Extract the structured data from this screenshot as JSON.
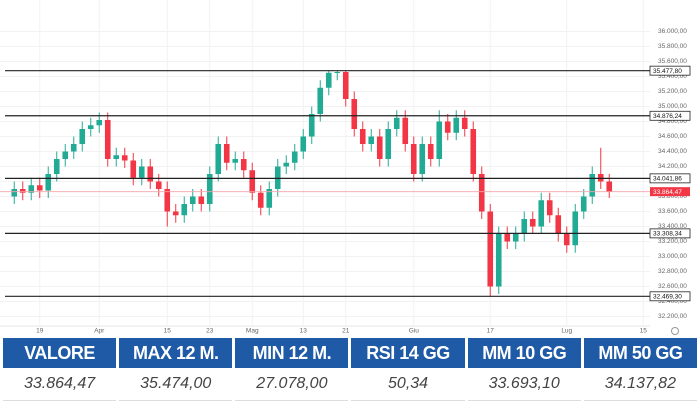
{
  "chart_data": {
    "type": "candlestick",
    "categories": [
      null,
      null,
      null,
      "19",
      null,
      null,
      null,
      null,
      null,
      null,
      "Apr",
      null,
      null,
      null,
      null,
      null,
      null,
      null,
      "15",
      null,
      null,
      null,
      null,
      "23",
      null,
      null,
      null,
      null,
      "Mag",
      null,
      null,
      null,
      null,
      null,
      "13",
      null,
      null,
      null,
      null,
      "21",
      null,
      null,
      null,
      null,
      null,
      null,
      null,
      "Giu",
      null,
      null,
      null,
      null,
      null,
      null,
      null,
      null,
      "17",
      null,
      null,
      null,
      null,
      null,
      null,
      null,
      null,
      "Lug",
      null,
      null,
      null,
      null,
      null,
      null,
      null,
      null,
      "15"
    ],
    "open": [
      33800,
      33900,
      33850,
      33950,
      33880,
      34100,
      34300,
      34400,
      34500,
      34700,
      34750,
      34820,
      34300,
      34350,
      34280,
      34050,
      34200,
      34000,
      33900,
      33600,
      33550,
      33700,
      33800,
      33700,
      34100,
      34500,
      34250,
      34300,
      34150,
      33850,
      33650,
      33900,
      34200,
      34250,
      34400,
      34600,
      34900,
      35250,
      35450,
      35460,
      35100,
      34700,
      34500,
      34600,
      34300,
      34700,
      34850,
      34500,
      34100,
      34500,
      34300,
      34800,
      34650,
      34850,
      34700,
      34100,
      33600,
      32600,
      33300,
      33200,
      33300,
      33500,
      33400,
      33750,
      33550,
      33300,
      33150,
      33600,
      33800,
      34100,
      34000,
      null,
      null,
      null,
      null
    ],
    "high": [
      34000,
      34000,
      34050,
      34050,
      34200,
      34400,
      34500,
      34600,
      34800,
      34850,
      34920,
      34920,
      34450,
      34450,
      34380,
      34300,
      34300,
      34100,
      34000,
      33700,
      33800,
      33900,
      33900,
      34200,
      34600,
      34600,
      34400,
      34400,
      34250,
      33950,
      34000,
      34300,
      34350,
      34500,
      34700,
      35000,
      35350,
      35474,
      35474,
      35474,
      35200,
      34800,
      34700,
      34700,
      34800,
      34950,
      34950,
      34600,
      34600,
      34600,
      34950,
      34900,
      34950,
      34950,
      34800,
      34200,
      33700,
      33400,
      33400,
      33400,
      33600,
      33600,
      33850,
      33850,
      33650,
      33400,
      33700,
      33900,
      34200,
      34450,
      34100,
      null,
      null,
      null,
      null
    ],
    "low": [
      33700,
      33750,
      33750,
      33780,
      33780,
      34000,
      34200,
      34300,
      34400,
      34600,
      34650,
      34200,
      34200,
      34180,
      33950,
      33950,
      33900,
      33800,
      33400,
      33450,
      33450,
      33600,
      33600,
      33600,
      34000,
      34150,
      34150,
      34050,
      33750,
      33550,
      33550,
      33800,
      34100,
      34150,
      34300,
      34500,
      34800,
      35150,
      35350,
      35000,
      34600,
      34400,
      34400,
      34200,
      34200,
      34600,
      34400,
      34000,
      34000,
      34200,
      34200,
      34550,
      34550,
      34600,
      34000,
      33500,
      32469.3,
      32500,
      33100,
      33100,
      33200,
      33300,
      33300,
      33450,
      33200,
      33050,
      33050,
      33500,
      33700,
      33900,
      33780,
      null,
      null,
      null,
      null
    ],
    "close": [
      33900,
      33850,
      33950,
      33880,
      34100,
      34300,
      34400,
      34500,
      34700,
      34750,
      34820,
      34300,
      34350,
      34280,
      34050,
      34200,
      34000,
      33900,
      33600,
      33550,
      33700,
      33800,
      33700,
      34100,
      34500,
      34250,
      34300,
      34150,
      33850,
      33650,
      33900,
      34200,
      34250,
      34400,
      34600,
      34900,
      35250,
      35450,
      35460,
      35100,
      34700,
      34500,
      34600,
      34300,
      34700,
      34850,
      34500,
      34100,
      34500,
      34300,
      34800,
      34650,
      34850,
      34700,
      34100,
      33600,
      32600,
      33300,
      33200,
      33300,
      33500,
      33400,
      33750,
      33550,
      33300,
      33150,
      33600,
      33800,
      34100,
      34000,
      33864.47,
      null,
      null,
      null,
      null
    ],
    "up_color": "#22ab94",
    "down_color": "#f23645",
    "ylim": [
      32100,
      36100
    ],
    "yticks": [
      {
        "value": 32200,
        "label": "32.200,00"
      },
      {
        "value": 32400,
        "label": "32.400,00"
      },
      {
        "value": 32600,
        "label": "32.600,00"
      },
      {
        "value": 32800,
        "label": "32.800,00"
      },
      {
        "value": 33000,
        "label": "33.000,00"
      },
      {
        "value": 33200,
        "label": "33.200,00"
      },
      {
        "value": 33400,
        "label": "33.400,00"
      },
      {
        "value": 33600,
        "label": "33.600,00"
      },
      {
        "value": 33800,
        "label": "33.800,00"
      },
      {
        "value": 34000,
        "label": "34.000,00"
      },
      {
        "value": 34200,
        "label": "34.200,00"
      },
      {
        "value": 34400,
        "label": "34.400,00"
      },
      {
        "value": 34600,
        "label": "34.600,00"
      },
      {
        "value": 34800,
        "label": "34.800,00"
      },
      {
        "value": 35000,
        "label": "35.000,00"
      },
      {
        "value": 35200,
        "label": "35.200,00"
      },
      {
        "value": 35400,
        "label": "35.400,00"
      },
      {
        "value": 35600,
        "label": "35.600,00"
      },
      {
        "value": 35800,
        "label": "35.800,00"
      },
      {
        "value": 36000,
        "label": "36.000,00"
      }
    ],
    "levels": [
      {
        "value": 35477.8,
        "label": "35.477,80"
      },
      {
        "value": 34876.24,
        "label": "34.876,24"
      },
      {
        "value": 34041.86,
        "label": "34.041,86"
      },
      {
        "value": 33308.34,
        "label": "33.308,34"
      },
      {
        "value": 32469.3,
        "label": "32.469,30"
      }
    ],
    "last_price": {
      "value": 33864.47,
      "label": "33.864,47"
    },
    "grid": true
  },
  "table": {
    "headers": [
      "VALORE",
      "MAX 12 M.",
      "MIN 12 M.",
      "RSI 14 GG",
      "MM 10 GG",
      "MM 50 GG"
    ],
    "values": [
      "33.864,47",
      "35.474,00",
      "27.078,00",
      "50,34",
      "33.693,10",
      "34.137,82"
    ]
  }
}
